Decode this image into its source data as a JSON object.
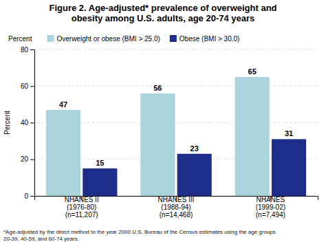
{
  "chart_data": {
    "type": "bar",
    "title": "Figure 2. Age-adjusted* prevalence of overweight and\nobesity among U.S. adults, age 20-74 years",
    "ylabel": "Percent",
    "footnote": "*Age-adjusted by the direct method to the year 2000 U.S. Bureau of the Census estimates using the age groups\n20-39, 40-59, and 60-74 years.",
    "categories": [
      "NHANES II\n(1976-80)\n(n=11,207)",
      "NHANES III\n(1988-94)\n(n=14,468)",
      "NHANES\n(1999-02)\n(n=7,494)"
    ],
    "series": [
      {
        "name": "Overweight or obese (BMI > 25.0)",
        "color": "#aad4dc",
        "values": [
          47,
          56,
          65
        ]
      },
      {
        "name": "Obese (BMI > 30.0)",
        "color": "#1e2e8a",
        "values": [
          15,
          23,
          31
        ]
      }
    ],
    "ylim": [
      0,
      80
    ],
    "yticks": [
      0,
      20,
      40,
      60,
      80
    ],
    "grid": true,
    "legend": "top",
    "data_labels": true
  }
}
